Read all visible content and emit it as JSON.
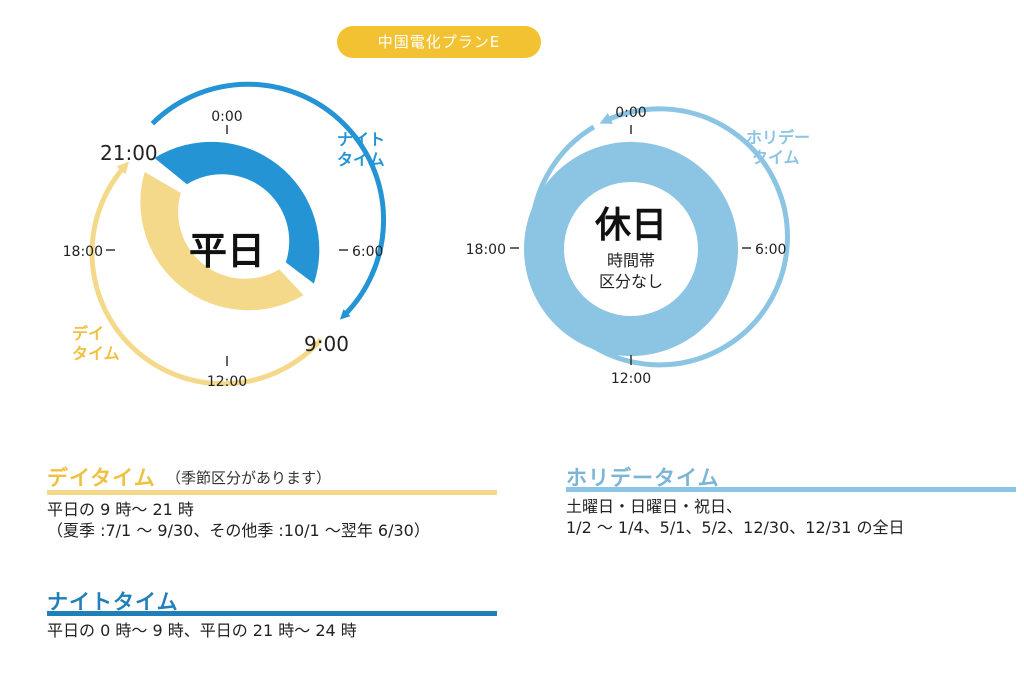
{
  "plan": {
    "title": "中国電化プランE"
  },
  "weekday_clock": {
    "center_label": "平日",
    "ticks": {
      "top": "0:00",
      "right": "6:00",
      "bottom": "12:00",
      "left": "18:00"
    },
    "night_start": "21:00",
    "night_end": "9:00",
    "night_label_line1": "ナイト",
    "night_label_line2": "タイム",
    "day_label_line1": "デイ",
    "day_label_line2": "タイム"
  },
  "holiday_clock": {
    "center_label": "休日",
    "center_sub_line1": "時間帯",
    "center_sub_line2": "区分なし",
    "ticks": {
      "top": "0:00",
      "right": "6:00",
      "bottom": "12:00",
      "left": "18:00"
    },
    "holiday_label_line1": "ホリデー",
    "holiday_label_line2": "タイム"
  },
  "sections": {
    "day": {
      "title": "デイタイム",
      "note": "（季節区分があります）",
      "line1": "平日の 9 時～ 21 時",
      "line2": "（夏季 :7/1 ～ 9/30、その他季 :10/1 ～翌年 6/30）"
    },
    "night": {
      "title": "ナイトタイム",
      "line1": "平日の 0 時～ 9 時、平日の 21 時～ 24 時"
    },
    "holiday": {
      "title": "ホリデータイム",
      "line1": "土曜日・日曜日・祝日、",
      "line2": "1/2 ～ 1/4、5/1、5/2、12/30、12/31 の全日"
    }
  },
  "colors": {
    "badge": "#f2c232",
    "day": "#f5d98a",
    "day_title": "#f0c040",
    "night": "#2494d4",
    "night_title": "#1f7fb8",
    "holiday": "#8cc4e3",
    "holiday_title": "#7ab4d6"
  }
}
